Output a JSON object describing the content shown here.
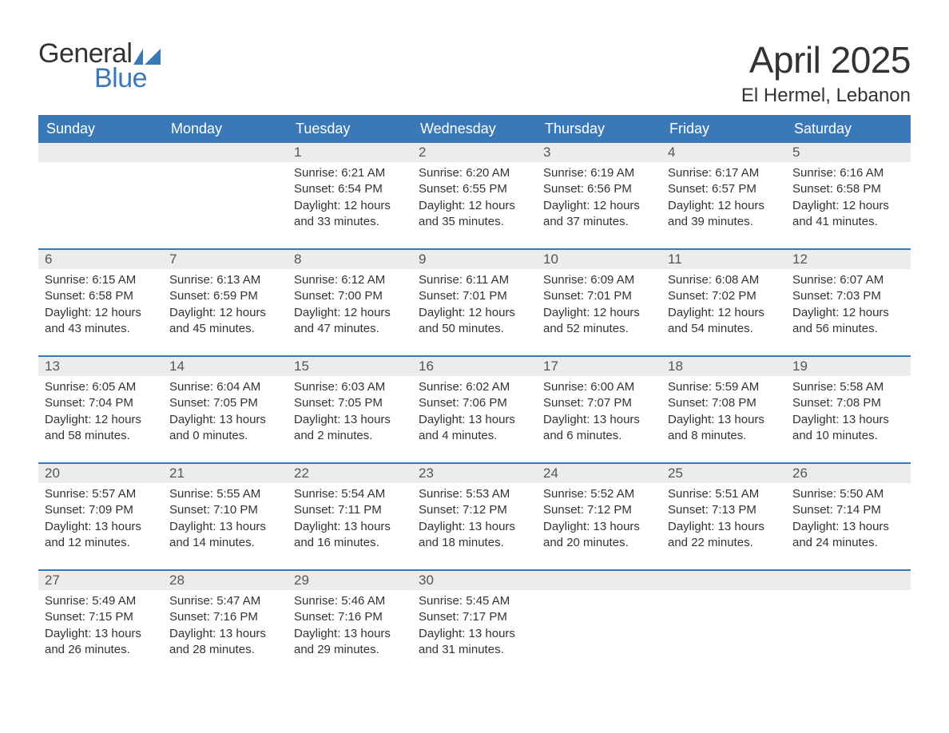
{
  "logo": {
    "text_general": "General",
    "text_blue": "Blue",
    "flag_color": "#3b78b8"
  },
  "title": "April 2025",
  "location": "El Hermel, Lebanon",
  "colors": {
    "header_bg": "#3b78b8",
    "header_text": "#ffffff",
    "daynum_bg": "#ececec",
    "daynum_text": "#555555",
    "body_bg": "#ffffff",
    "body_text": "#333333",
    "week_border": "#3b78b8"
  },
  "font": {
    "family": "Arial",
    "title_size_pt": 34,
    "location_size_pt": 18,
    "header_size_pt": 14,
    "body_size_pt": 11
  },
  "day_names": [
    "Sunday",
    "Monday",
    "Tuesday",
    "Wednesday",
    "Thursday",
    "Friday",
    "Saturday"
  ],
  "weeks": [
    [
      {
        "n": "",
        "lines": []
      },
      {
        "n": "",
        "lines": []
      },
      {
        "n": "1",
        "lines": [
          "Sunrise: 6:21 AM",
          "Sunset: 6:54 PM",
          "Daylight: 12 hours and 33 minutes."
        ]
      },
      {
        "n": "2",
        "lines": [
          "Sunrise: 6:20 AM",
          "Sunset: 6:55 PM",
          "Daylight: 12 hours and 35 minutes."
        ]
      },
      {
        "n": "3",
        "lines": [
          "Sunrise: 6:19 AM",
          "Sunset: 6:56 PM",
          "Daylight: 12 hours and 37 minutes."
        ]
      },
      {
        "n": "4",
        "lines": [
          "Sunrise: 6:17 AM",
          "Sunset: 6:57 PM",
          "Daylight: 12 hours and 39 minutes."
        ]
      },
      {
        "n": "5",
        "lines": [
          "Sunrise: 6:16 AM",
          "Sunset: 6:58 PM",
          "Daylight: 12 hours and 41 minutes."
        ]
      }
    ],
    [
      {
        "n": "6",
        "lines": [
          "Sunrise: 6:15 AM",
          "Sunset: 6:58 PM",
          "Daylight: 12 hours and 43 minutes."
        ]
      },
      {
        "n": "7",
        "lines": [
          "Sunrise: 6:13 AM",
          "Sunset: 6:59 PM",
          "Daylight: 12 hours and 45 minutes."
        ]
      },
      {
        "n": "8",
        "lines": [
          "Sunrise: 6:12 AM",
          "Sunset: 7:00 PM",
          "Daylight: 12 hours and 47 minutes."
        ]
      },
      {
        "n": "9",
        "lines": [
          "Sunrise: 6:11 AM",
          "Sunset: 7:01 PM",
          "Daylight: 12 hours and 50 minutes."
        ]
      },
      {
        "n": "10",
        "lines": [
          "Sunrise: 6:09 AM",
          "Sunset: 7:01 PM",
          "Daylight: 12 hours and 52 minutes."
        ]
      },
      {
        "n": "11",
        "lines": [
          "Sunrise: 6:08 AM",
          "Sunset: 7:02 PM",
          "Daylight: 12 hours and 54 minutes."
        ]
      },
      {
        "n": "12",
        "lines": [
          "Sunrise: 6:07 AM",
          "Sunset: 7:03 PM",
          "Daylight: 12 hours and 56 minutes."
        ]
      }
    ],
    [
      {
        "n": "13",
        "lines": [
          "Sunrise: 6:05 AM",
          "Sunset: 7:04 PM",
          "Daylight: 12 hours and 58 minutes."
        ]
      },
      {
        "n": "14",
        "lines": [
          "Sunrise: 6:04 AM",
          "Sunset: 7:05 PM",
          "Daylight: 13 hours and 0 minutes."
        ]
      },
      {
        "n": "15",
        "lines": [
          "Sunrise: 6:03 AM",
          "Sunset: 7:05 PM",
          "Daylight: 13 hours and 2 minutes."
        ]
      },
      {
        "n": "16",
        "lines": [
          "Sunrise: 6:02 AM",
          "Sunset: 7:06 PM",
          "Daylight: 13 hours and 4 minutes."
        ]
      },
      {
        "n": "17",
        "lines": [
          "Sunrise: 6:00 AM",
          "Sunset: 7:07 PM",
          "Daylight: 13 hours and 6 minutes."
        ]
      },
      {
        "n": "18",
        "lines": [
          "Sunrise: 5:59 AM",
          "Sunset: 7:08 PM",
          "Daylight: 13 hours and 8 minutes."
        ]
      },
      {
        "n": "19",
        "lines": [
          "Sunrise: 5:58 AM",
          "Sunset: 7:08 PM",
          "Daylight: 13 hours and 10 minutes."
        ]
      }
    ],
    [
      {
        "n": "20",
        "lines": [
          "Sunrise: 5:57 AM",
          "Sunset: 7:09 PM",
          "Daylight: 13 hours and 12 minutes."
        ]
      },
      {
        "n": "21",
        "lines": [
          "Sunrise: 5:55 AM",
          "Sunset: 7:10 PM",
          "Daylight: 13 hours and 14 minutes."
        ]
      },
      {
        "n": "22",
        "lines": [
          "Sunrise: 5:54 AM",
          "Sunset: 7:11 PM",
          "Daylight: 13 hours and 16 minutes."
        ]
      },
      {
        "n": "23",
        "lines": [
          "Sunrise: 5:53 AM",
          "Sunset: 7:12 PM",
          "Daylight: 13 hours and 18 minutes."
        ]
      },
      {
        "n": "24",
        "lines": [
          "Sunrise: 5:52 AM",
          "Sunset: 7:12 PM",
          "Daylight: 13 hours and 20 minutes."
        ]
      },
      {
        "n": "25",
        "lines": [
          "Sunrise: 5:51 AM",
          "Sunset: 7:13 PM",
          "Daylight: 13 hours and 22 minutes."
        ]
      },
      {
        "n": "26",
        "lines": [
          "Sunrise: 5:50 AM",
          "Sunset: 7:14 PM",
          "Daylight: 13 hours and 24 minutes."
        ]
      }
    ],
    [
      {
        "n": "27",
        "lines": [
          "Sunrise: 5:49 AM",
          "Sunset: 7:15 PM",
          "Daylight: 13 hours and 26 minutes."
        ]
      },
      {
        "n": "28",
        "lines": [
          "Sunrise: 5:47 AM",
          "Sunset: 7:16 PM",
          "Daylight: 13 hours and 28 minutes."
        ]
      },
      {
        "n": "29",
        "lines": [
          "Sunrise: 5:46 AM",
          "Sunset: 7:16 PM",
          "Daylight: 13 hours and 29 minutes."
        ]
      },
      {
        "n": "30",
        "lines": [
          "Sunrise: 5:45 AM",
          "Sunset: 7:17 PM",
          "Daylight: 13 hours and 31 minutes."
        ]
      },
      {
        "n": "",
        "lines": []
      },
      {
        "n": "",
        "lines": []
      },
      {
        "n": "",
        "lines": []
      }
    ]
  ]
}
